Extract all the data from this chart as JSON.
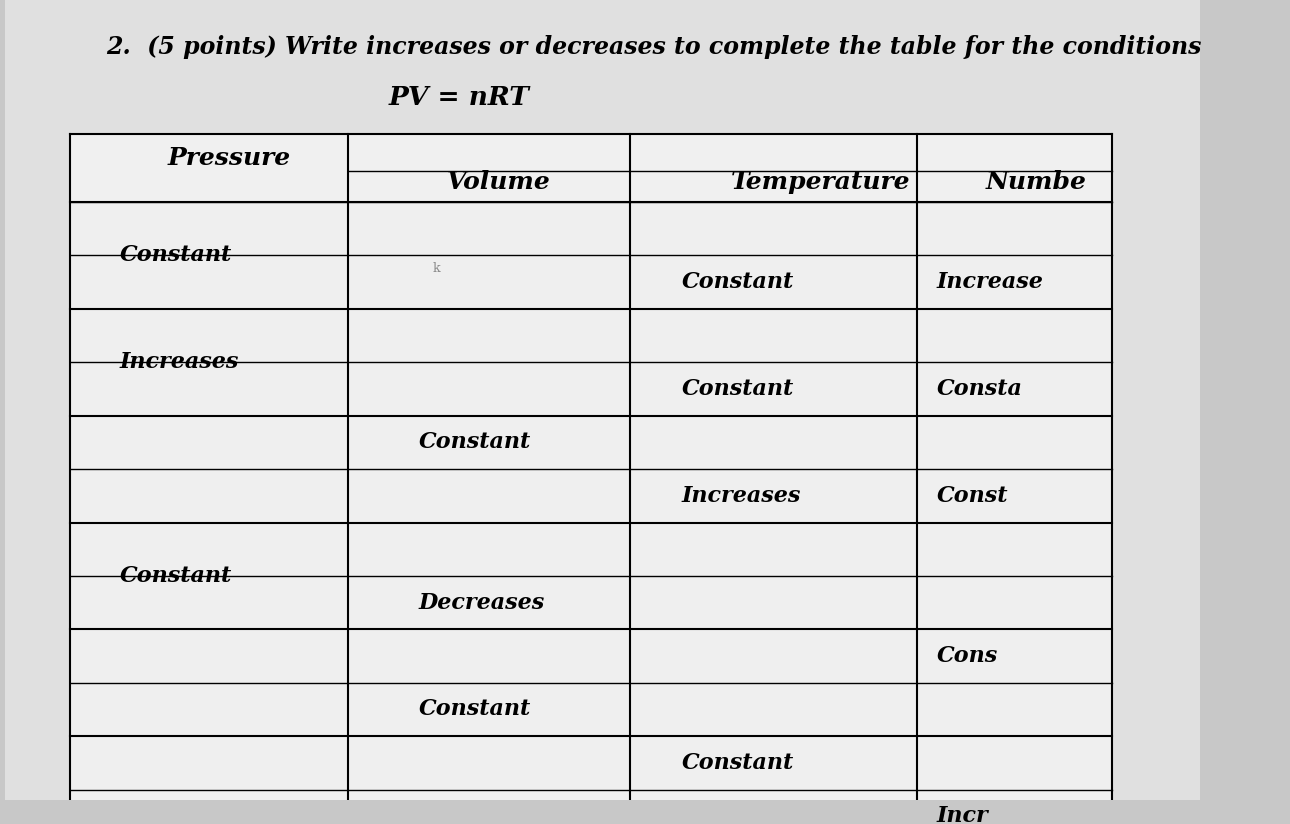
{
  "title_line1": "2.  (5 points) Write increases or decreases to complete the table for the conditions",
  "title_line2": "PV = nRT",
  "bg_color": "#c8c8c8",
  "paper_color": "#dcdcdc",
  "table_bg": "#e8e8e8",
  "col_headers": [
    "Pressure",
    "Volume",
    "Temperature",
    "Numbe"
  ],
  "font_size_title": 17,
  "font_size_equation": 19,
  "font_size_header": 18,
  "font_size_cell": 16,
  "pressure_col_texts": [
    "Constant",
    "Increases",
    "",
    "Constant",
    "",
    ""
  ],
  "volume_subrow_texts": [
    "",
    "",
    "",
    "",
    "Constant",
    "",
    "",
    "Decreases",
    "",
    "Constant",
    "",
    ""
  ],
  "temp_subrow_texts": [
    "",
    "Constant",
    "",
    "Constant",
    "",
    "Increases",
    "",
    "",
    "",
    "",
    "Constant",
    ""
  ],
  "number_subrow_texts": [
    "",
    "Increase",
    "",
    "Consta",
    "",
    "Const",
    "",
    "",
    "Cons",
    "",
    "",
    "Incr"
  ]
}
